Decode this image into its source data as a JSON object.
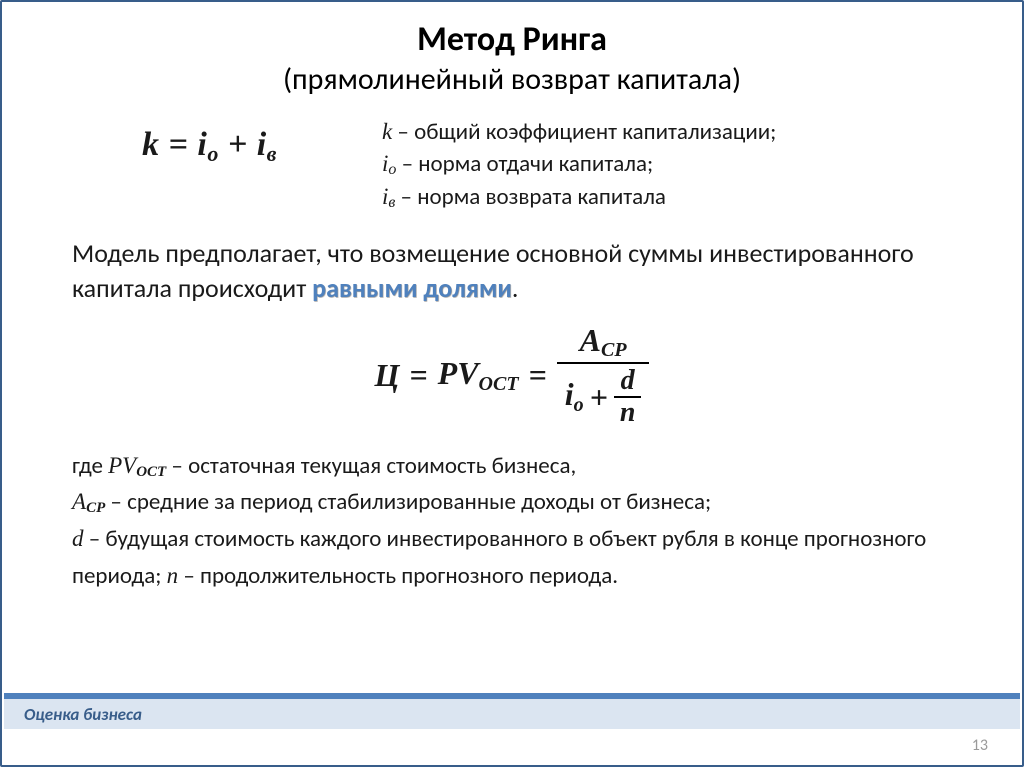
{
  "colors": {
    "slide_border": "#385d8a",
    "accent_text": "#4f81bd",
    "footer_bar": "#4f81bd",
    "footer_bg": "#dbe5f1",
    "footer_text": "#385d8a",
    "pagenum": "#9a9a9a",
    "body_text": "#1a1a1a",
    "background": "#ffffff"
  },
  "fonts": {
    "body_family": "Calibri, Arial, sans-serif",
    "formula_family": "Times New Roman, serif",
    "title_size_pt": 26,
    "subtitle_size_pt": 22,
    "formula_size_pt": 24,
    "body_size_pt": 18,
    "defs_size_pt": 17,
    "footer_size_pt": 13
  },
  "title": "Метод Ринга",
  "subtitle": "(прямолинейный возврат капитала)",
  "formula1": {
    "lhs": "k",
    "eq": " = ",
    "term1": "i",
    "term1_sub": "о",
    "plus": " + ",
    "term2": "i",
    "term2_sub": "в"
  },
  "defs": {
    "line1_sym": "k",
    "line1_rest": " – общий коэффициент капитализации;",
    "line2_sym": "i",
    "line2_sub": "о",
    "line2_rest": " – норма отдачи капитала;",
    "line3_sym": "i",
    "line3_sub": "в",
    "line3_rest": " – норма возврата капитала"
  },
  "paragraph": {
    "part1": "Модель предполагает, что возмещение основной суммы инвестированного капитала происходит ",
    "emph": "равными долями",
    "part2": "."
  },
  "formula2": {
    "lhs": "Ц",
    "eq1": " = ",
    "pv": "PV",
    "pv_sub": "ОСТ",
    "eq2": " = ",
    "num_A": "A",
    "num_sub": "СР",
    "den_i": "i",
    "den_i_sub": "о",
    "plus": " + ",
    "inner_num": "d",
    "inner_den": "n"
  },
  "where": {
    "w1a": "где   ",
    "w1_pv": "PV",
    "w1_sub": "ОСТ",
    "w1b": " – остаточная текущая стоимость бизнеса,",
    "w2_a": "A",
    "w2_sub": "СР",
    "w2b": " – средние за период стабилизированные доходы от бизнеса;",
    "w3_d": "d",
    "w3b": " – будущая стоимость каждого инвестированного в объект рубля в конце прогнозного периода; ",
    "w3_n": "n",
    "w3c": " – продолжительность прогнозного периода."
  },
  "footer_label": "Оценка бизнеса",
  "page_number": "13"
}
